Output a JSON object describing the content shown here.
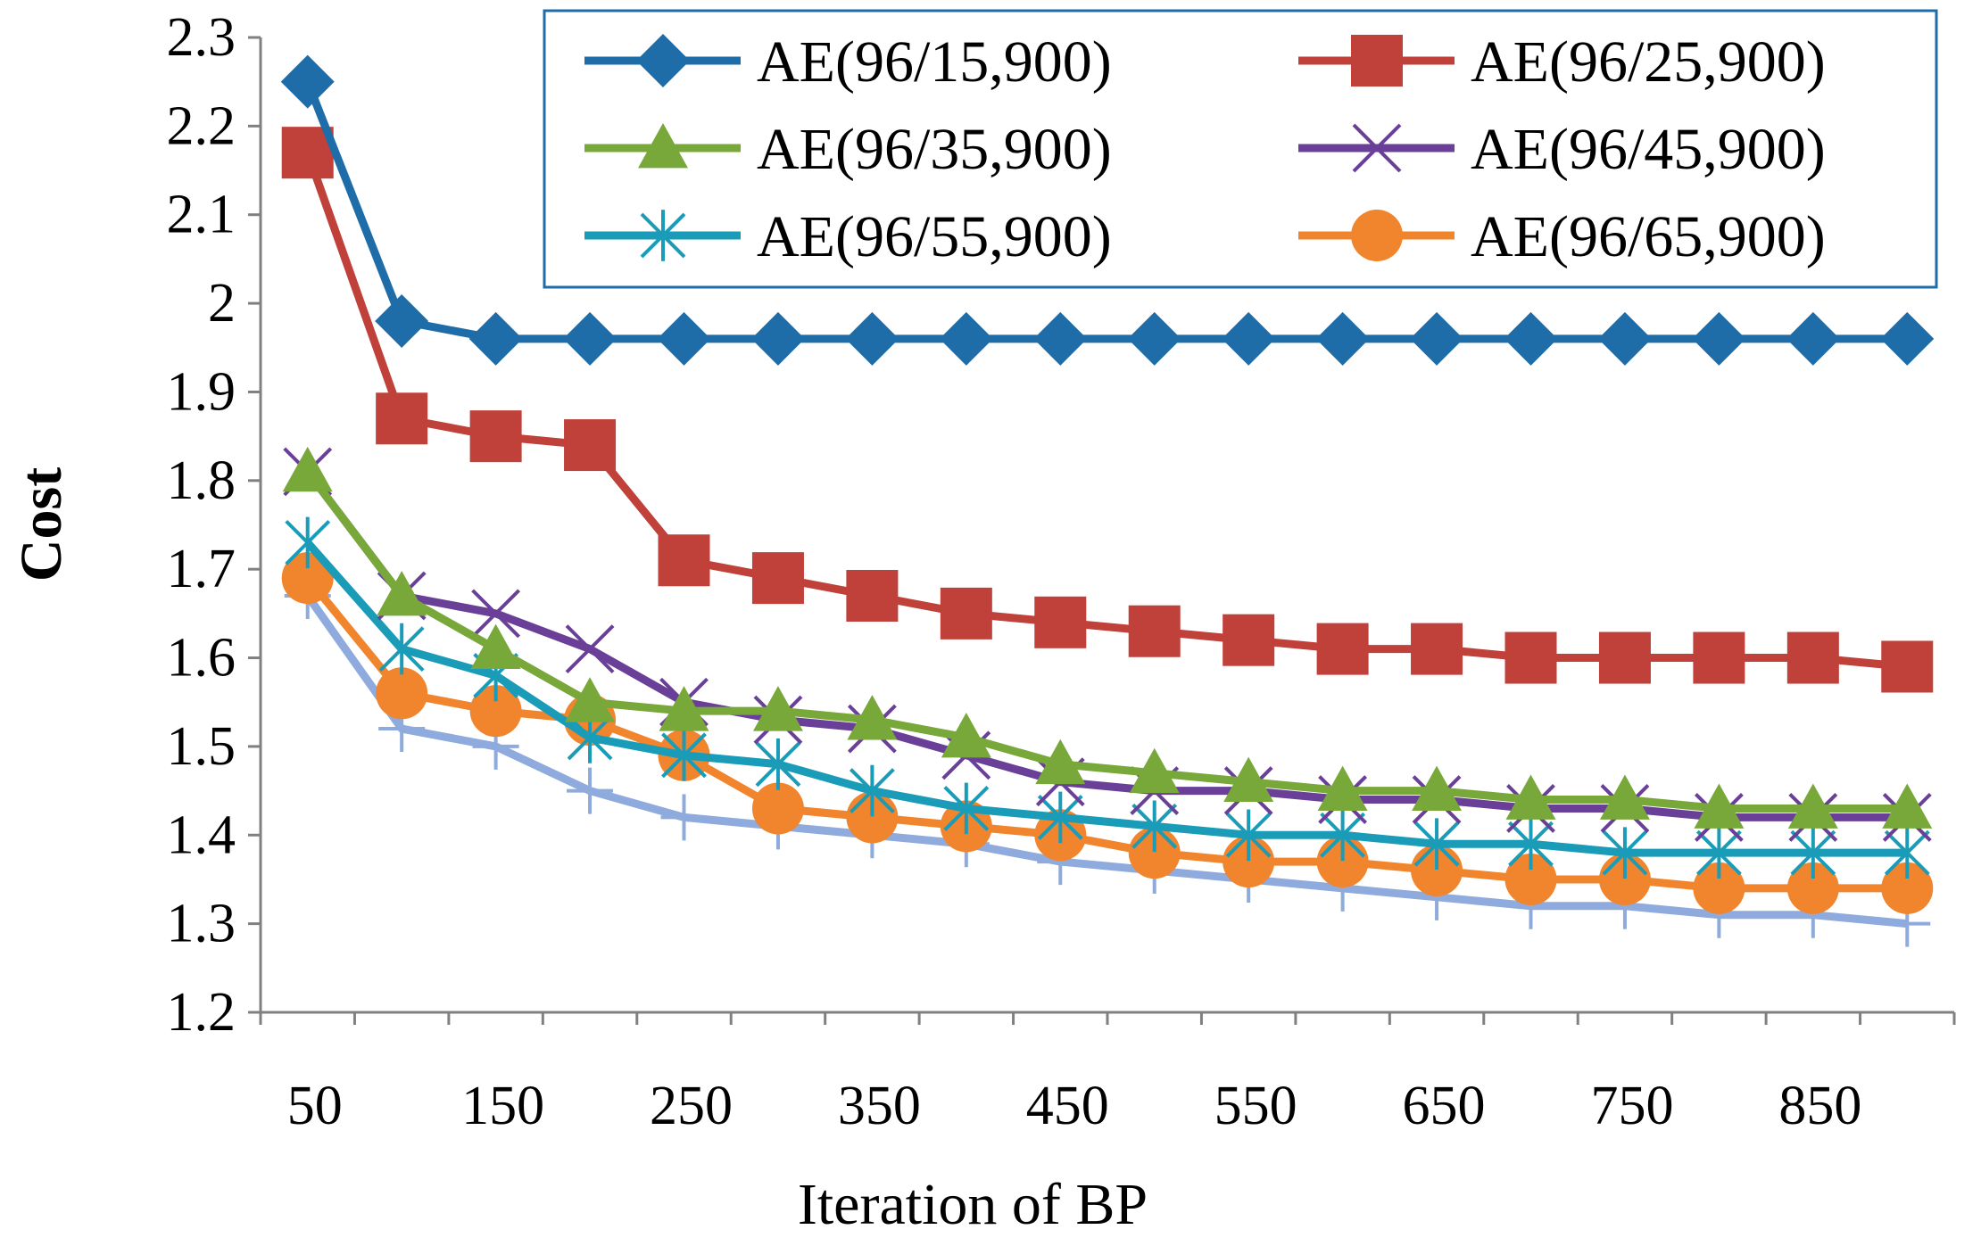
{
  "chart_data": {
    "type": "line",
    "title": "",
    "xlabel": "Iteration of BP",
    "ylabel": "Cost",
    "ylim": [
      1.2,
      2.3
    ],
    "yticks": [
      "1.2",
      "1.3",
      "1.4",
      "1.5",
      "1.6",
      "1.7",
      "1.8",
      "1.9",
      "2",
      "2.1",
      "2.2",
      "2.3"
    ],
    "x": [
      50,
      100,
      150,
      200,
      250,
      300,
      350,
      400,
      450,
      500,
      550,
      600,
      650,
      700,
      750,
      800,
      850,
      900
    ],
    "xtick_labels": [
      "50",
      "150",
      "250",
      "350",
      "450",
      "550",
      "650",
      "750",
      "850"
    ],
    "legend_position": "top-right",
    "series": [
      {
        "name": "AE(96/15,900)",
        "color": "#1F6DA8",
        "marker": "diamond",
        "values": [
          2.25,
          1.98,
          1.96,
          1.96,
          1.96,
          1.96,
          1.96,
          1.96,
          1.96,
          1.96,
          1.96,
          1.96,
          1.96,
          1.96,
          1.96,
          1.96,
          1.96,
          1.96
        ]
      },
      {
        "name": "AE(96/25,900)",
        "color": "#C0403A",
        "marker": "square",
        "values": [
          2.17,
          1.87,
          1.85,
          1.84,
          1.71,
          1.69,
          1.67,
          1.65,
          1.64,
          1.63,
          1.62,
          1.61,
          1.61,
          1.6,
          1.6,
          1.6,
          1.6,
          1.59
        ]
      },
      {
        "name": "AE(96/35,900)",
        "color": "#78A83A",
        "marker": "triangle",
        "values": [
          1.81,
          1.67,
          1.61,
          1.55,
          1.54,
          1.54,
          1.53,
          1.51,
          1.48,
          1.47,
          1.46,
          1.45,
          1.45,
          1.44,
          1.44,
          1.43,
          1.43,
          1.43
        ]
      },
      {
        "name": "AE(96/45,900)",
        "color": "#6A3F98",
        "marker": "x",
        "values": [
          1.81,
          1.67,
          1.65,
          1.61,
          1.55,
          1.53,
          1.52,
          1.49,
          1.46,
          1.45,
          1.45,
          1.44,
          1.44,
          1.43,
          1.43,
          1.42,
          1.42,
          1.42
        ]
      },
      {
        "name": "AE(96/55,900)",
        "color": "#1A9CB8",
        "marker": "asterisk",
        "values": [
          1.73,
          1.61,
          1.58,
          1.51,
          1.49,
          1.48,
          1.45,
          1.43,
          1.42,
          1.41,
          1.4,
          1.4,
          1.39,
          1.39,
          1.38,
          1.38,
          1.38,
          1.38
        ]
      },
      {
        "name": "AE(96/65,900)",
        "color": "#F0852D",
        "marker": "circle",
        "values": [
          1.69,
          1.56,
          1.54,
          1.53,
          1.49,
          1.43,
          1.42,
          1.41,
          1.4,
          1.38,
          1.37,
          1.37,
          1.36,
          1.35,
          1.35,
          1.34,
          1.34,
          1.34
        ]
      },
      {
        "name": "",
        "color": "#8FAADC",
        "marker": "plus",
        "values": [
          1.67,
          1.52,
          1.5,
          1.45,
          1.42,
          1.41,
          1.4,
          1.39,
          1.37,
          1.36,
          1.35,
          1.34,
          1.33,
          1.32,
          1.32,
          1.31,
          1.31,
          1.3
        ]
      }
    ]
  },
  "legend_border_color": "#1F6DA8"
}
